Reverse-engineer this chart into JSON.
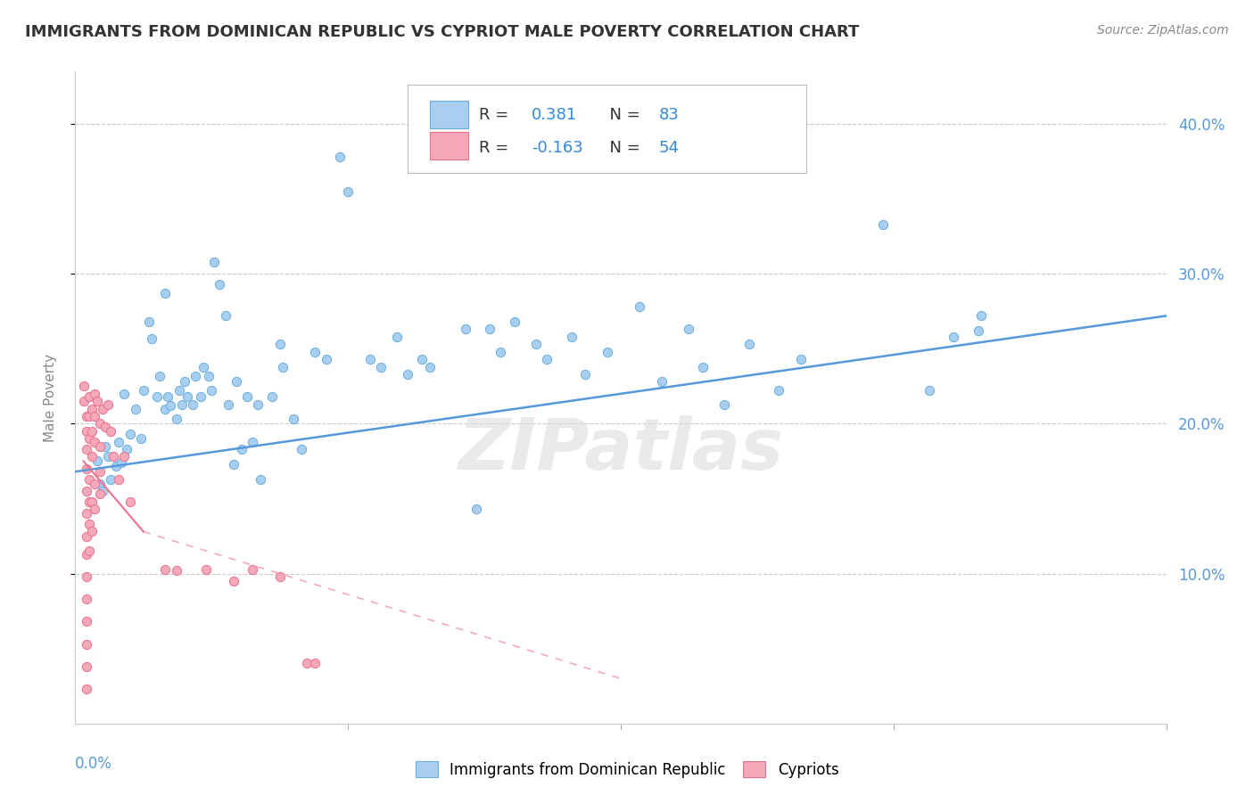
{
  "title": "IMMIGRANTS FROM DOMINICAN REPUBLIC VS CYPRIOT MALE POVERTY CORRELATION CHART",
  "source": "Source: ZipAtlas.com",
  "ylabel": "Male Poverty",
  "ytick_values": [
    0.1,
    0.2,
    0.3,
    0.4
  ],
  "ytick_labels": [
    "10.0%",
    "20.0%",
    "30.0%",
    "40.0%"
  ],
  "xmin": 0.0,
  "xmax": 0.4,
  "ymin": 0.0,
  "ymax": 0.435,
  "legend1_R": "R =  0.381",
  "legend1_N": "N = 83",
  "legend2_R": "R = -0.163",
  "legend2_N": "N = 54",
  "blue_color": "#a8cef0",
  "pink_color": "#f5a8b8",
  "blue_edge_color": "#6baedd",
  "pink_edge_color": "#e87090",
  "blue_line_color": "#5599dd",
  "pink_line_color": "#ee7090",
  "blue_scatter": [
    [
      0.008,
      0.175
    ],
    [
      0.009,
      0.16
    ],
    [
      0.01,
      0.155
    ],
    [
      0.011,
      0.185
    ],
    [
      0.012,
      0.178
    ],
    [
      0.013,
      0.163
    ],
    [
      0.015,
      0.172
    ],
    [
      0.016,
      0.188
    ],
    [
      0.017,
      0.174
    ],
    [
      0.018,
      0.22
    ],
    [
      0.019,
      0.183
    ],
    [
      0.02,
      0.193
    ],
    [
      0.022,
      0.21
    ],
    [
      0.024,
      0.19
    ],
    [
      0.025,
      0.222
    ],
    [
      0.027,
      0.268
    ],
    [
      0.028,
      0.257
    ],
    [
      0.03,
      0.218
    ],
    [
      0.031,
      0.232
    ],
    [
      0.033,
      0.287
    ],
    [
      0.033,
      0.21
    ],
    [
      0.034,
      0.218
    ],
    [
      0.035,
      0.212
    ],
    [
      0.037,
      0.203
    ],
    [
      0.038,
      0.222
    ],
    [
      0.039,
      0.213
    ],
    [
      0.04,
      0.228
    ],
    [
      0.041,
      0.218
    ],
    [
      0.043,
      0.213
    ],
    [
      0.044,
      0.232
    ],
    [
      0.046,
      0.218
    ],
    [
      0.047,
      0.238
    ],
    [
      0.049,
      0.232
    ],
    [
      0.05,
      0.222
    ],
    [
      0.051,
      0.308
    ],
    [
      0.053,
      0.293
    ],
    [
      0.055,
      0.272
    ],
    [
      0.056,
      0.213
    ],
    [
      0.058,
      0.173
    ],
    [
      0.059,
      0.228
    ],
    [
      0.061,
      0.183
    ],
    [
      0.063,
      0.218
    ],
    [
      0.065,
      0.188
    ],
    [
      0.067,
      0.213
    ],
    [
      0.068,
      0.163
    ],
    [
      0.072,
      0.218
    ],
    [
      0.075,
      0.253
    ],
    [
      0.076,
      0.238
    ],
    [
      0.08,
      0.203
    ],
    [
      0.083,
      0.183
    ],
    [
      0.088,
      0.248
    ],
    [
      0.092,
      0.243
    ],
    [
      0.097,
      0.378
    ],
    [
      0.1,
      0.355
    ],
    [
      0.108,
      0.243
    ],
    [
      0.112,
      0.238
    ],
    [
      0.118,
      0.258
    ],
    [
      0.122,
      0.233
    ],
    [
      0.127,
      0.243
    ],
    [
      0.13,
      0.238
    ],
    [
      0.143,
      0.263
    ],
    [
      0.147,
      0.143
    ],
    [
      0.152,
      0.263
    ],
    [
      0.156,
      0.248
    ],
    [
      0.161,
      0.268
    ],
    [
      0.169,
      0.253
    ],
    [
      0.173,
      0.243
    ],
    [
      0.182,
      0.258
    ],
    [
      0.187,
      0.233
    ],
    [
      0.195,
      0.248
    ],
    [
      0.207,
      0.278
    ],
    [
      0.215,
      0.228
    ],
    [
      0.225,
      0.263
    ],
    [
      0.23,
      0.238
    ],
    [
      0.238,
      0.213
    ],
    [
      0.247,
      0.253
    ],
    [
      0.258,
      0.222
    ],
    [
      0.266,
      0.243
    ],
    [
      0.296,
      0.333
    ],
    [
      0.313,
      0.222
    ],
    [
      0.322,
      0.258
    ],
    [
      0.331,
      0.262
    ],
    [
      0.332,
      0.272
    ]
  ],
  "pink_scatter": [
    [
      0.003,
      0.225
    ],
    [
      0.003,
      0.215
    ],
    [
      0.004,
      0.205
    ],
    [
      0.004,
      0.195
    ],
    [
      0.004,
      0.183
    ],
    [
      0.004,
      0.17
    ],
    [
      0.004,
      0.155
    ],
    [
      0.004,
      0.14
    ],
    [
      0.004,
      0.125
    ],
    [
      0.004,
      0.113
    ],
    [
      0.004,
      0.098
    ],
    [
      0.004,
      0.083
    ],
    [
      0.004,
      0.068
    ],
    [
      0.004,
      0.053
    ],
    [
      0.004,
      0.038
    ],
    [
      0.004,
      0.023
    ],
    [
      0.005,
      0.218
    ],
    [
      0.005,
      0.205
    ],
    [
      0.005,
      0.19
    ],
    [
      0.005,
      0.163
    ],
    [
      0.005,
      0.148
    ],
    [
      0.005,
      0.133
    ],
    [
      0.005,
      0.115
    ],
    [
      0.006,
      0.21
    ],
    [
      0.006,
      0.195
    ],
    [
      0.006,
      0.178
    ],
    [
      0.006,
      0.148
    ],
    [
      0.006,
      0.128
    ],
    [
      0.007,
      0.22
    ],
    [
      0.007,
      0.205
    ],
    [
      0.007,
      0.188
    ],
    [
      0.007,
      0.16
    ],
    [
      0.007,
      0.143
    ],
    [
      0.008,
      0.215
    ],
    [
      0.009,
      0.2
    ],
    [
      0.009,
      0.185
    ],
    [
      0.009,
      0.168
    ],
    [
      0.009,
      0.153
    ],
    [
      0.01,
      0.21
    ],
    [
      0.011,
      0.198
    ],
    [
      0.012,
      0.213
    ],
    [
      0.013,
      0.195
    ],
    [
      0.014,
      0.178
    ],
    [
      0.016,
      0.163
    ],
    [
      0.018,
      0.178
    ],
    [
      0.02,
      0.148
    ],
    [
      0.033,
      0.103
    ],
    [
      0.037,
      0.102
    ],
    [
      0.048,
      0.103
    ],
    [
      0.058,
      0.095
    ],
    [
      0.065,
      0.103
    ],
    [
      0.075,
      0.098
    ],
    [
      0.085,
      0.04
    ],
    [
      0.088,
      0.04
    ]
  ],
  "blue_trendline": [
    [
      0.0,
      0.168
    ],
    [
      0.4,
      0.272
    ]
  ],
  "pink_trendline_solid": [
    [
      0.003,
      0.175
    ],
    [
      0.025,
      0.128
    ]
  ],
  "pink_trendline_dash": [
    [
      0.025,
      0.128
    ],
    [
      0.2,
      0.03
    ]
  ],
  "watermark": "ZIPatlas",
  "background_color": "#ffffff",
  "grid_color": "#cccccc",
  "title_color": "#333333",
  "source_color": "#888888",
  "ylabel_color": "#888888",
  "tick_label_color": "#5599dd"
}
